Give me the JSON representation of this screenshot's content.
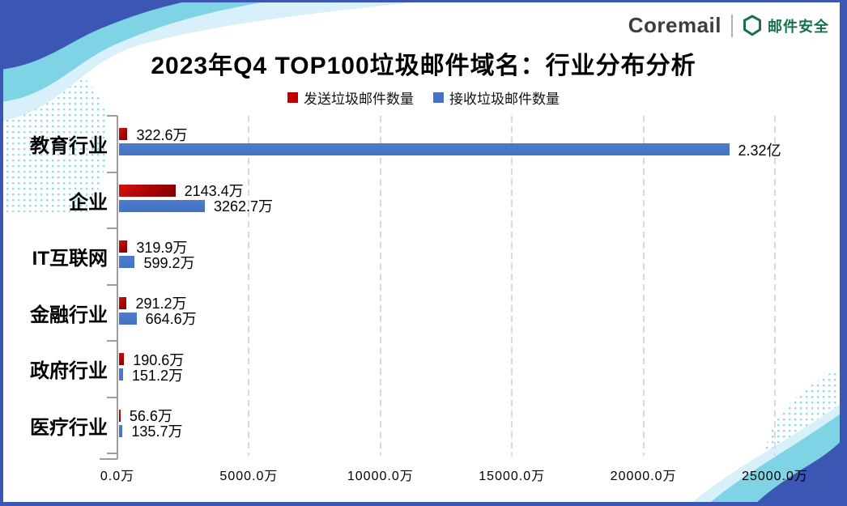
{
  "brand": {
    "logo_text": "Coremail",
    "product_name": "邮件安全",
    "brand_green": "#15714a",
    "logo_color": "#3d3d3d"
  },
  "title": "2023年Q4 TOP100垃圾邮件域名：行业分布分析",
  "legend": [
    {
      "label": "发送垃圾邮件数量",
      "color": "#c00000"
    },
    {
      "label": "接收垃圾邮件数量",
      "color": "#4472c4"
    }
  ],
  "colors": {
    "frame_blue": "#3c57b3",
    "wave_cyan": "#7ed4e5",
    "wave_pale": "#d7f0fa",
    "dots_cyan": "#8edce9",
    "bar_red": "#c00000",
    "bar_blue": "#4472c4",
    "axis_gray": "#9e9e9e",
    "grid_gray": "#d9d9d9"
  },
  "chart_data": {
    "type": "bar",
    "orientation": "horizontal",
    "title": "2023年Q4 TOP100垃圾邮件域名：行业分布分析",
    "categories": [
      "教育行业",
      "企业",
      "IT互联网",
      "金融行业",
      "政府行业",
      "医疗行业"
    ],
    "series": [
      {
        "name": "发送垃圾邮件数量",
        "color": "#c00000",
        "values_wan": [
          322.6,
          2143.4,
          319.9,
          291.2,
          190.6,
          56.6
        ],
        "data_labels": [
          "322.6万",
          "2143.4万",
          "319.9万",
          "291.2万",
          "190.6万",
          "56.6万"
        ]
      },
      {
        "name": "接收垃圾邮件数量",
        "color": "#4472c4",
        "values_wan": [
          23200,
          3262.7,
          599.2,
          664.6,
          151.2,
          135.7
        ],
        "data_labels": [
          "2.32亿",
          "3262.7万",
          "599.2万",
          "664.6万",
          "151.2万",
          "135.7万"
        ]
      }
    ],
    "x_axis": {
      "min_wan": 0,
      "max_wan": 25000,
      "tick_step_wan": 5000,
      "tick_labels": [
        "0.0万",
        "5000.0万",
        "10000.0万",
        "15000.0万",
        "20000.0万",
        "25000.0万"
      ]
    },
    "grid": "vertical-dashed",
    "legend_position": "top-center"
  }
}
